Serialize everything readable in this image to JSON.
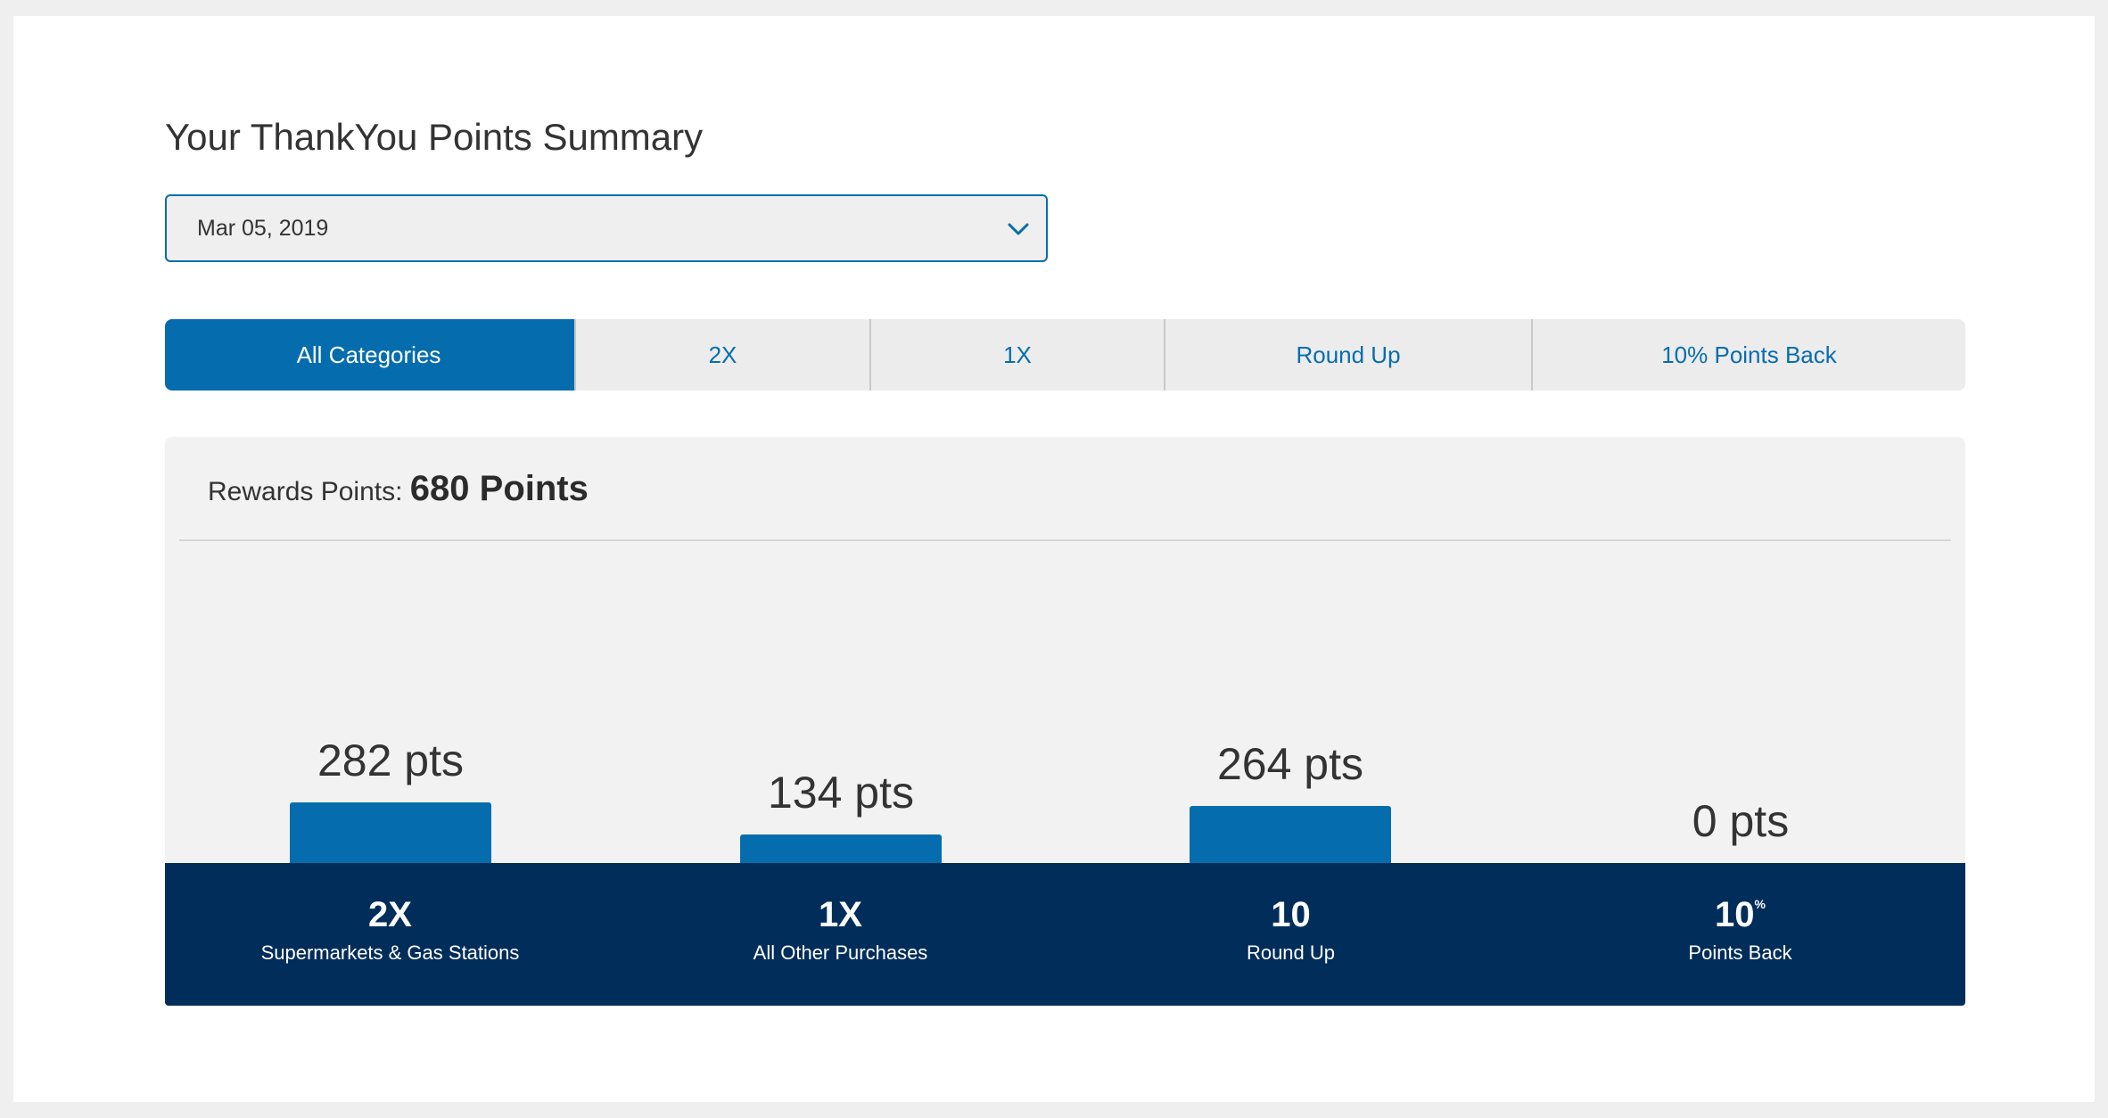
{
  "page": {
    "title": "Your ThankYou Points Summary"
  },
  "date_select": {
    "value": "Mar 05, 2019",
    "icon": "chevron-down-icon"
  },
  "tabs": [
    {
      "label": "All Categories",
      "active": true
    },
    {
      "label": "2X",
      "active": false
    },
    {
      "label": "1X",
      "active": false
    },
    {
      "label": "Round Up",
      "active": false
    },
    {
      "label": "10% Points Back",
      "active": false
    }
  ],
  "summary": {
    "label": "Rewards Points:",
    "total": "680 Points"
  },
  "categories": [
    {
      "value_label": "282 pts",
      "points": 282,
      "head": "2X",
      "sub": "Supermarkets & Gas Stations"
    },
    {
      "value_label": "134 pts",
      "points": 134,
      "head": "1X",
      "sub": "All Other Purchases"
    },
    {
      "value_label": "264 pts",
      "points": 264,
      "head": "10",
      "sub": "Round Up"
    },
    {
      "value_label": "0 pts",
      "points": 0,
      "head": "10",
      "head_sup": "%",
      "sub": "Points Back"
    }
  ],
  "colors": {
    "accent": "#056dae",
    "footer": "#002d5a",
    "panel": "#f2f2f2"
  }
}
